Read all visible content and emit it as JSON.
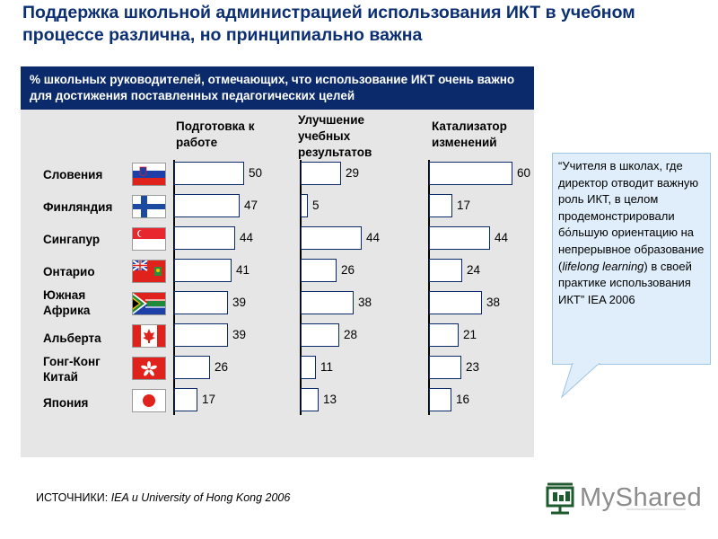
{
  "title": "Поддержка школьной администрацией использования ИКТ в учебном процессе различна, но принципиально важна",
  "panel_header": "% школьных руководителей, отмечающих, что использование ИКТ очень важно для достижения поставленных педагогических целей",
  "quote": {
    "before": "“Учителя в школах, где директор отводит важную роль ИКТ, в целом продемонстрировали бо́льшую ориентацию на непрерывное образование (",
    "italic": "lifelong learning",
    "after": ") в своей практике использования ИКТ” IEA 2006"
  },
  "source": {
    "label": "ИСТОЧНИКИ: ",
    "text": "IEA и University of Hong Kong 2006"
  },
  "logo": {
    "text": "MyShared"
  },
  "colors": {
    "title": "#0b2f72",
    "header_bg": "#0b2a6b",
    "panel_bg": "#e6e6e6",
    "bar_border": "#0b2a6b",
    "quote_bg": "#dfeefa"
  },
  "chart_data": {
    "type": "bar",
    "orientation": "horizontal",
    "categories": [
      "Словения",
      "Финляндия",
      "Сингапур",
      "Онтарио",
      "Южная Африка",
      "Альберта",
      "Гонг-Конг Китай",
      "Япония"
    ],
    "series": [
      {
        "name": "Подготовка к работе",
        "values": [
          50,
          47,
          44,
          41,
          39,
          39,
          26,
          17
        ]
      },
      {
        "name": "Улучшение учебных результатов",
        "values": [
          29,
          5,
          44,
          26,
          38,
          28,
          11,
          13
        ]
      },
      {
        "name": "Катализатор изменений",
        "values": [
          60,
          17,
          44,
          24,
          38,
          21,
          23,
          16
        ]
      }
    ],
    "flags": [
      "slovenia-flag",
      "finland-flag",
      "singapore-flag",
      "ontario-flag",
      "south-africa-flag",
      "alberta-flag",
      "hong-kong-flag",
      "japan-flag"
    ],
    "grid": false,
    "legend": "none"
  }
}
